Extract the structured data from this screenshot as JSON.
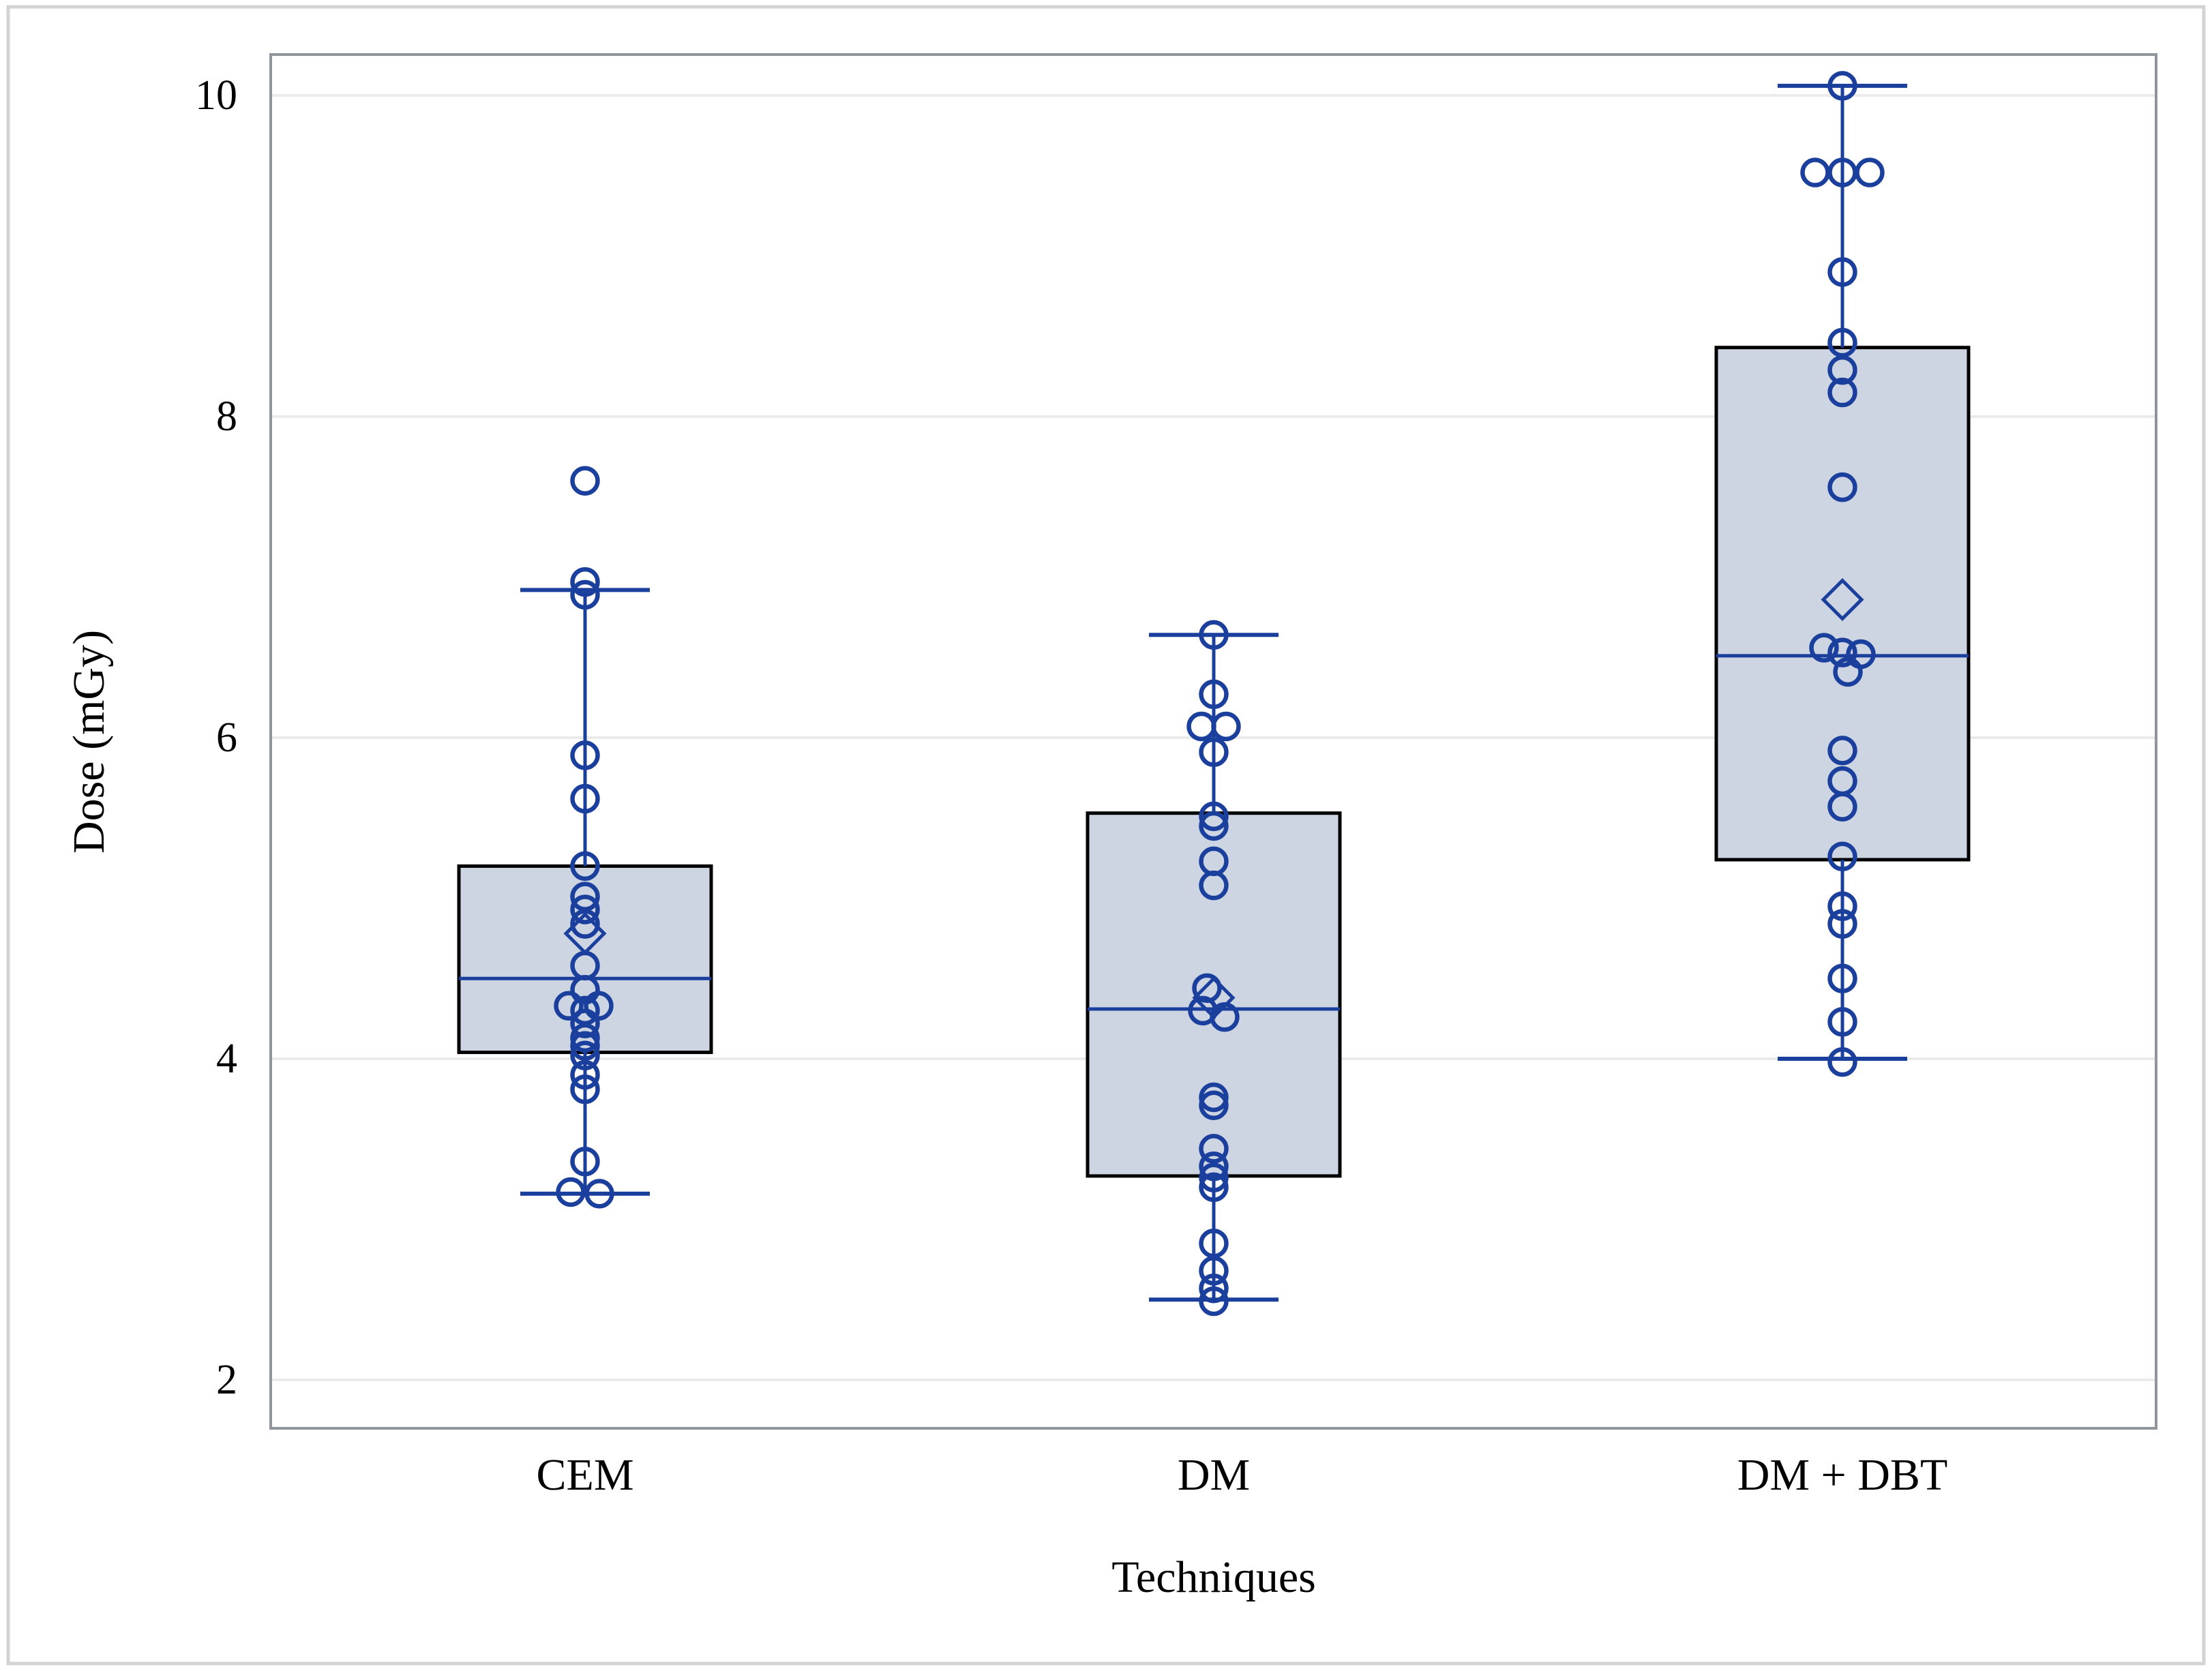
{
  "figure": {
    "background": "#ffffff",
    "border_color": "#d4d4d4"
  },
  "chart_data": {
    "type": "box",
    "title": "",
    "xlabel": "Techniques",
    "ylabel": "Dose (mGy)",
    "categories": [
      "CEM",
      "DM",
      "DM + DBT"
    ],
    "y_ticks": [
      2,
      4,
      6,
      8,
      10
    ],
    "ylim": [
      1.7,
      10.25
    ],
    "grid": true,
    "legend": "none",
    "marker": "open-circle",
    "mean_marker": "open-diamond",
    "colors": {
      "box_fill": "#cdd5e3",
      "box_border": "#000000",
      "line": "#1b3f9c",
      "grid": "#ebebeb",
      "frame": "#8f959b",
      "text": "#000000"
    },
    "series": [
      {
        "name": "CEM",
        "stats": {
          "min": 3.16,
          "q1": 4.04,
          "median": 4.5,
          "q3": 5.2,
          "max": 6.92
        },
        "mean": 4.78,
        "points": [
          [
            7.6,
            0
          ],
          [
            6.97,
            0
          ],
          [
            6.89,
            0
          ],
          [
            5.89,
            0
          ],
          [
            5.62,
            0
          ],
          [
            5.2,
            0
          ],
          [
            5.01,
            0
          ],
          [
            4.93,
            0
          ],
          [
            4.84,
            0
          ],
          [
            4.58,
            0
          ],
          [
            4.43,
            0
          ],
          [
            4.33,
            -24
          ],
          [
            4.33,
            20
          ],
          [
            4.3,
            0
          ],
          [
            4.22,
            0
          ],
          [
            4.13,
            0
          ],
          [
            4.08,
            0
          ],
          [
            4.02,
            0
          ],
          [
            3.9,
            0
          ],
          [
            3.81,
            0
          ],
          [
            3.36,
            0
          ],
          [
            3.17,
            -21
          ],
          [
            3.16,
            21
          ]
        ]
      },
      {
        "name": "DM",
        "stats": {
          "min": 2.5,
          "q1": 3.27,
          "median": 4.31,
          "q3": 5.53,
          "max": 6.64
        },
        "mean": 4.38,
        "points": [
          [
            6.64,
            0
          ],
          [
            6.27,
            0
          ],
          [
            6.07,
            -18
          ],
          [
            6.07,
            18
          ],
          [
            5.91,
            0
          ],
          [
            5.51,
            0
          ],
          [
            5.45,
            0
          ],
          [
            5.23,
            0
          ],
          [
            5.08,
            0
          ],
          [
            4.44,
            -10
          ],
          [
            4.3,
            -16
          ],
          [
            4.26,
            16
          ],
          [
            3.76,
            0
          ],
          [
            3.71,
            0
          ],
          [
            3.44,
            0
          ],
          [
            3.33,
            0
          ],
          [
            3.26,
            0
          ],
          [
            3.2,
            0
          ],
          [
            2.85,
            0
          ],
          [
            2.68,
            0
          ],
          [
            2.57,
            0
          ],
          [
            2.49,
            0
          ]
        ]
      },
      {
        "name": "DM + DBT",
        "stats": {
          "min": 4.0,
          "q1": 5.24,
          "median": 6.51,
          "q3": 8.43,
          "max": 10.06
        },
        "mean": 6.86,
        "points": [
          [
            10.06,
            0
          ],
          [
            9.52,
            -40
          ],
          [
            9.52,
            0
          ],
          [
            9.52,
            40
          ],
          [
            8.9,
            0
          ],
          [
            8.46,
            0
          ],
          [
            8.29,
            0
          ],
          [
            8.15,
            0
          ],
          [
            7.56,
            0
          ],
          [
            6.56,
            -27
          ],
          [
            6.53,
            0
          ],
          [
            6.52,
            27
          ],
          [
            6.41,
            8
          ],
          [
            5.92,
            0
          ],
          [
            5.73,
            0
          ],
          [
            5.57,
            0
          ],
          [
            5.26,
            0
          ],
          [
            4.95,
            0
          ],
          [
            4.84,
            0
          ],
          [
            4.5,
            0
          ],
          [
            4.23,
            0
          ],
          [
            3.98,
            0
          ]
        ]
      }
    ]
  }
}
